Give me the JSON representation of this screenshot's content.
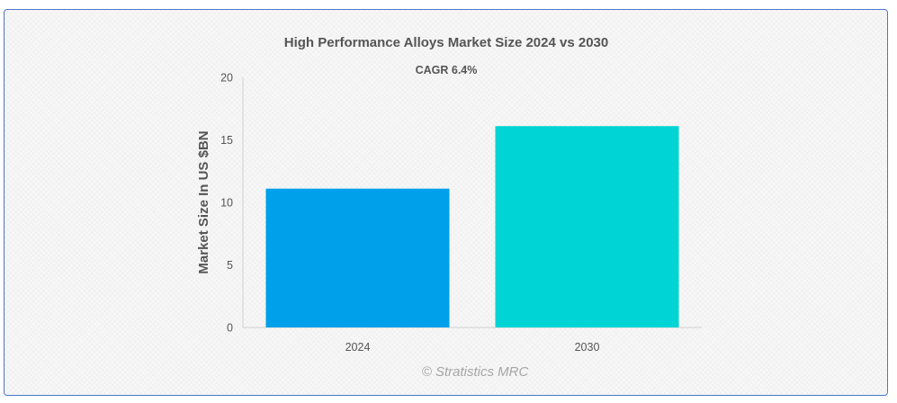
{
  "chart_data": {
    "type": "bar",
    "title": "High Performance Alloys Market Size 2024 vs 2030",
    "subtitle": "CAGR 6.4%",
    "categories": [
      "2024",
      "2030"
    ],
    "values": [
      11.1,
      16.1
    ],
    "colors": [
      "#00a0ea",
      "#00d4d4"
    ],
    "xlabel": "",
    "ylabel": "Market Size In US $BN",
    "ylim": [
      0,
      20
    ],
    "yticks": [
      0,
      5,
      10,
      15,
      20
    ],
    "grid": false,
    "legend": "none"
  },
  "credit": "© Stratistics MRC"
}
